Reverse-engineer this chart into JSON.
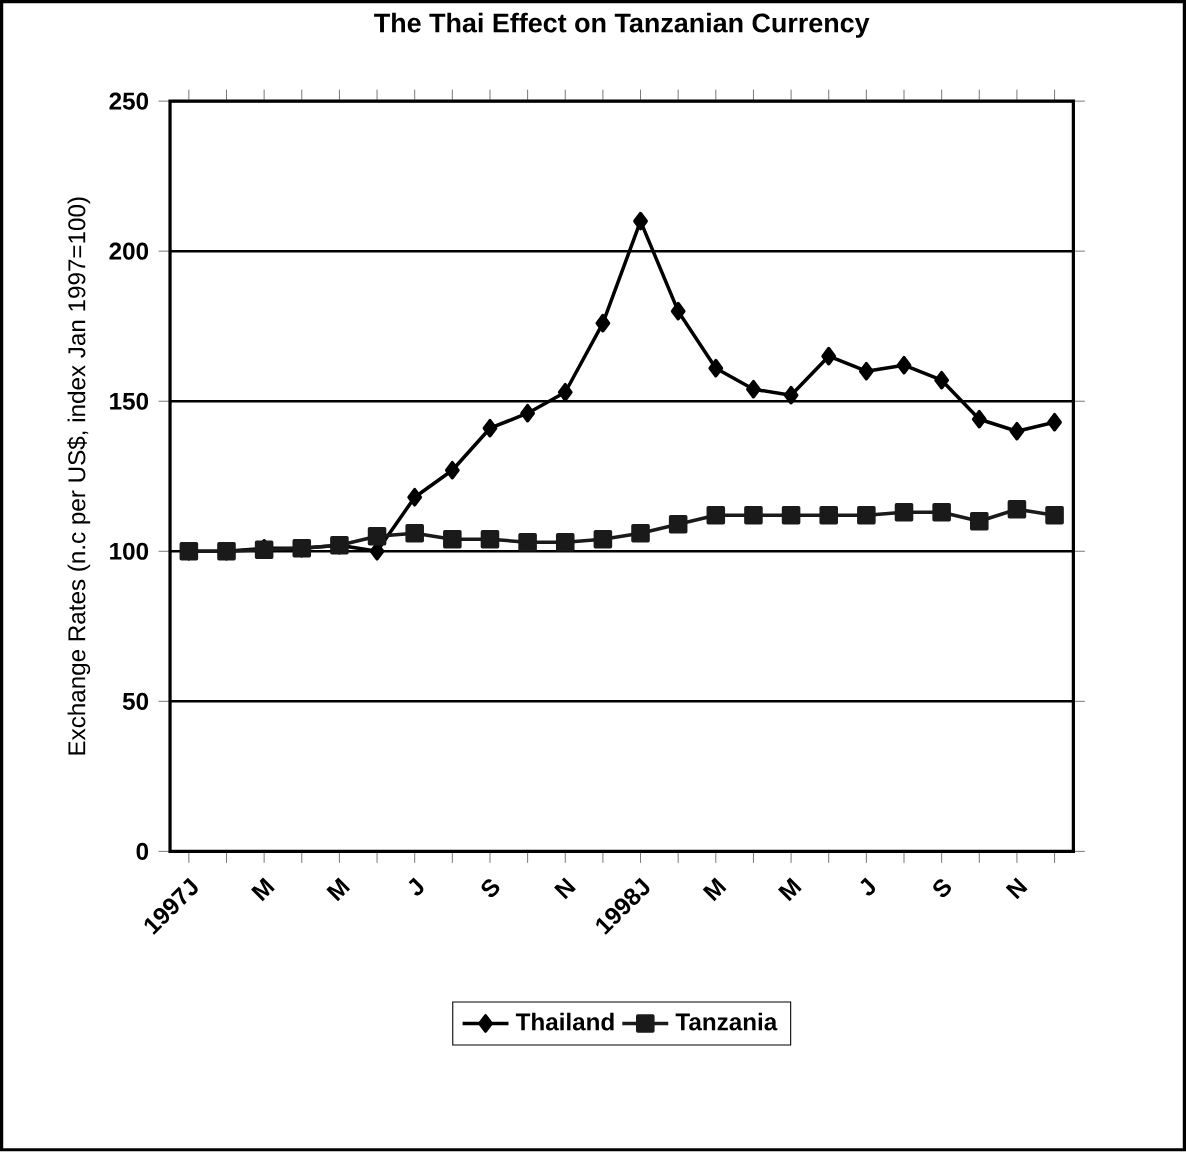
{
  "chart_data": {
    "type": "line",
    "title": "The Thai Effect on Tanzanian Currency",
    "ylabel": "Exchange Rates (n.c per US$, index Jan 1997=100)",
    "categories": [
      "1997J",
      null,
      "M",
      null,
      "M",
      null,
      "J",
      null,
      "S",
      null,
      "N",
      null,
      "1998J",
      null,
      "M",
      null,
      "M",
      null,
      "J",
      null,
      "S",
      null,
      "N",
      null
    ],
    "series": [
      {
        "name": "Thailand",
        "color": "#000000",
        "marker": "diamond",
        "values": [
          100,
          100,
          101,
          101,
          102,
          100,
          118,
          127,
          141,
          146,
          153,
          176,
          210,
          180,
          161,
          154,
          152,
          165,
          160,
          162,
          157,
          144,
          140,
          143
        ]
      },
      {
        "name": "Tanzania",
        "color": "#1a1a1a",
        "marker": "square",
        "values": [
          100,
          100,
          100.5,
          101,
          102,
          105,
          106,
          104,
          104,
          103,
          103,
          104,
          106,
          109,
          112,
          112,
          112,
          112,
          112,
          113,
          113,
          110,
          114,
          112
        ]
      }
    ],
    "ylim": [
      0,
      250
    ],
    "yticks": [
      0,
      50,
      100,
      150,
      200,
      250
    ],
    "grid": "y",
    "legend": "bottom",
    "line_style": "solid"
  }
}
